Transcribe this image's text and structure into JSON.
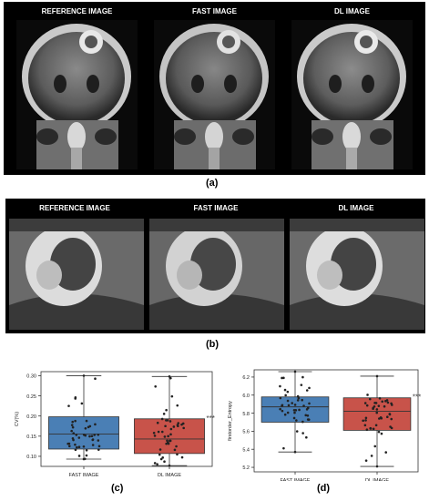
{
  "panel_a": {
    "titles": [
      "REFERENCE IMAGE",
      "FAST IMAGE",
      "DL IMAGE"
    ],
    "label": "(a)"
  },
  "panel_b": {
    "titles": [
      "REFERENCE IMAGE",
      "FAST IMAGE",
      "DL IMAGE"
    ],
    "label": "(b)"
  },
  "panel_c": {
    "label": "(c)"
  },
  "panel_d": {
    "label": "(d)"
  },
  "colors": {
    "fast_box": "#4a7fb5",
    "dl_box": "#c8534a",
    "points": "#222222"
  },
  "chart_data": [
    {
      "type": "box",
      "ylabel": "CV(%)",
      "ylim": [
        0.075,
        0.31
      ],
      "yticks": [
        "0.10",
        "0.15",
        "0.20",
        "0.25",
        "0.30"
      ],
      "categories": [
        "FAST IMAGE",
        "DL IMAGE"
      ],
      "annotation": "***",
      "boxes": [
        {
          "name": "FAST IMAGE",
          "min": 0.093,
          "q1": 0.118,
          "median": 0.155,
          "q3": 0.198,
          "max": 0.3
        },
        {
          "name": "DL IMAGE",
          "min": 0.077,
          "q1": 0.107,
          "median": 0.143,
          "q3": 0.193,
          "max": 0.298
        }
      ]
    },
    {
      "type": "box",
      "ylabel": "firstorder_Entropy",
      "ylim": [
        5.15,
        6.28
      ],
      "yticks": [
        "5.2",
        "5.4",
        "5.6",
        "5.8",
        "6.0",
        "6.2"
      ],
      "categories": [
        "FAST IMAGE",
        "DL IMAGE"
      ],
      "annotation": "***",
      "boxes": [
        {
          "name": "FAST IMAGE",
          "min": 5.37,
          "q1": 5.7,
          "median": 5.87,
          "q3": 5.98,
          "max": 6.26
        },
        {
          "name": "DL IMAGE",
          "min": 5.21,
          "q1": 5.61,
          "median": 5.82,
          "q3": 5.97,
          "max": 6.21
        }
      ]
    }
  ]
}
